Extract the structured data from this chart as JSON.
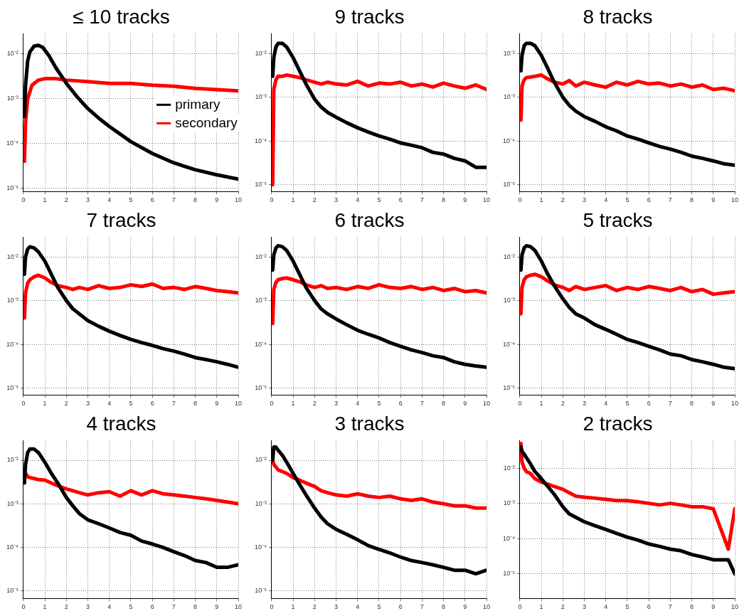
{
  "chart_data": [
    {
      "type": "line",
      "title": "≤ 10 tracks",
      "log": "y",
      "grid": true,
      "marker": "none",
      "line_style": "solid",
      "legend": "center right",
      "xlim": [
        0,
        10
      ],
      "xticks": [
        0,
        1,
        2,
        3,
        4,
        5,
        6,
        7,
        8,
        9,
        10
      ],
      "ylim": [
        8.5e-06,
        0.028
      ],
      "yticks": [
        {
          "value": 1e-05,
          "label": "10⁻⁵"
        },
        {
          "value": 0.0001,
          "label": "10⁻⁴"
        },
        {
          "value": 0.001,
          "label": "10⁻³"
        },
        {
          "value": 0.01,
          "label": "10⁻²"
        }
      ],
      "series": [
        {
          "name": "primary",
          "color": "#000000",
          "x": [
            0.05,
            0.1,
            0.2,
            0.3,
            0.5,
            0.7,
            0.9,
            1.2,
            1.5,
            2,
            2.5,
            3,
            3.5,
            4,
            5,
            6,
            7,
            8,
            9,
            10
          ],
          "values": [
            0.0004,
            0.002,
            0.007,
            0.011,
            0.015,
            0.0155,
            0.014,
            0.009,
            0.005,
            0.0022,
            0.0011,
            0.0006,
            0.00037,
            0.00024,
            0.00011,
            6e-05,
            3.7e-05,
            2.6e-05,
            2e-05,
            1.6e-05
          ]
        },
        {
          "name": "secondary",
          "color": "#ff0000",
          "x": [
            0.05,
            0.1,
            0.2,
            0.4,
            0.7,
            1,
            1.5,
            2,
            3,
            4,
            5,
            6,
            7,
            8,
            9,
            10
          ],
          "values": [
            4e-05,
            0.0003,
            0.001,
            0.002,
            0.0026,
            0.0028,
            0.0028,
            0.0026,
            0.0024,
            0.0022,
            0.0022,
            0.002,
            0.0019,
            0.0017,
            0.0016,
            0.0015
          ]
        }
      ]
    },
    {
      "type": "line",
      "title": "9 tracks",
      "log": "y",
      "grid": true,
      "marker": "none",
      "line_style": "solid",
      "xlim": [
        0,
        10
      ],
      "xticks": [
        0,
        1,
        2,
        3,
        4,
        5,
        6,
        7,
        8,
        9,
        10
      ],
      "ylim": [
        7e-06,
        0.028
      ],
      "yticks": [
        {
          "value": 1e-05,
          "label": "10⁻⁵"
        },
        {
          "value": 0.0001,
          "label": "10⁻⁴"
        },
        {
          "value": 0.001,
          "label": "10⁻³"
        },
        {
          "value": 0.01,
          "label": "10⁻²"
        }
      ],
      "x": [
        0.05,
        0.1,
        0.2,
        0.3,
        0.5,
        0.7,
        1,
        1.3,
        1.6,
        2,
        2.3,
        2.6,
        3,
        3.5,
        4,
        4.5,
        5,
        5.5,
        6,
        6.5,
        7,
        7.5,
        8,
        8.5,
        9,
        9.5,
        10
      ],
      "series": [
        {
          "color": "#000000",
          "values": [
            0.003,
            0.008,
            0.014,
            0.017,
            0.017,
            0.014,
            0.008,
            0.004,
            0.002,
            0.0009,
            0.0006,
            0.00045,
            0.00035,
            0.00026,
            0.0002,
            0.00016,
            0.00013,
            0.00011,
            9e-05,
            8e-05,
            7e-05,
            5.5e-05,
            5e-05,
            4e-05,
            3.5e-05,
            2.5e-05,
            2.5e-05
          ]
        },
        {
          "color": "#ff0000",
          "values": [
            1e-05,
            0.0015,
            0.0025,
            0.003,
            0.003,
            0.0032,
            0.003,
            0.0028,
            0.0025,
            0.0022,
            0.002,
            0.0022,
            0.002,
            0.0019,
            0.0023,
            0.0018,
            0.0021,
            0.002,
            0.0022,
            0.0018,
            0.002,
            0.0017,
            0.0021,
            0.0018,
            0.0016,
            0.0019,
            0.0015
          ]
        }
      ]
    },
    {
      "type": "line",
      "title": "8 tracks",
      "log": "y",
      "grid": true,
      "marker": "none",
      "line_style": "solid",
      "xlim": [
        0,
        10
      ],
      "xticks": [
        0,
        1,
        2,
        3,
        4,
        5,
        6,
        7,
        8,
        9,
        10
      ],
      "ylim": [
        7e-06,
        0.028
      ],
      "yticks": [
        {
          "value": 1e-05,
          "label": "10⁻⁵"
        },
        {
          "value": 0.0001,
          "label": "10⁻⁴"
        },
        {
          "value": 0.001,
          "label": "10⁻³"
        },
        {
          "value": 0.01,
          "label": "10⁻²"
        }
      ],
      "x": [
        0.05,
        0.1,
        0.2,
        0.3,
        0.5,
        0.7,
        1,
        1.3,
        1.6,
        2,
        2.3,
        2.6,
        3,
        3.5,
        4,
        4.5,
        5,
        5.5,
        6,
        6.5,
        7,
        7.5,
        8,
        8.5,
        9,
        9.5,
        10
      ],
      "series": [
        {
          "color": "#000000",
          "values": [
            0.004,
            0.009,
            0.015,
            0.017,
            0.017,
            0.015,
            0.009,
            0.0045,
            0.0022,
            0.001,
            0.00065,
            0.00048,
            0.00036,
            0.00028,
            0.00021,
            0.00017,
            0.00013,
            0.00011,
            9e-05,
            7.5e-05,
            6.5e-05,
            5.5e-05,
            4.5e-05,
            4e-05,
            3.5e-05,
            3e-05,
            2.8e-05
          ]
        },
        {
          "color": "#ff0000",
          "values": [
            0.0003,
            0.0018,
            0.0025,
            0.0028,
            0.0029,
            0.003,
            0.0032,
            0.0026,
            0.0022,
            0.002,
            0.0024,
            0.0018,
            0.0022,
            0.0019,
            0.0017,
            0.0022,
            0.0019,
            0.0023,
            0.002,
            0.0021,
            0.0018,
            0.002,
            0.0017,
            0.0019,
            0.0015,
            0.0016,
            0.0014
          ]
        }
      ]
    },
    {
      "type": "line",
      "title": "7 tracks",
      "log": "y",
      "grid": true,
      "marker": "none",
      "line_style": "solid",
      "xlim": [
        0,
        10
      ],
      "xticks": [
        0,
        1,
        2,
        3,
        4,
        5,
        6,
        7,
        8,
        9,
        10
      ],
      "ylim": [
        7e-06,
        0.028
      ],
      "yticks": [
        {
          "value": 1e-05,
          "label": "10⁻⁵"
        },
        {
          "value": 0.0001,
          "label": "10⁻⁴"
        },
        {
          "value": 0.001,
          "label": "10⁻³"
        },
        {
          "value": 0.01,
          "label": "10⁻²"
        }
      ],
      "x": [
        0.05,
        0.1,
        0.2,
        0.3,
        0.5,
        0.7,
        1,
        1.3,
        1.6,
        2,
        2.3,
        2.6,
        3,
        3.5,
        4,
        4.5,
        5,
        5.5,
        6,
        6.5,
        7,
        7.5,
        8,
        8.5,
        9,
        9.5,
        10
      ],
      "series": [
        {
          "color": "#000000",
          "values": [
            0.004,
            0.01,
            0.015,
            0.017,
            0.016,
            0.013,
            0.008,
            0.004,
            0.002,
            0.001,
            0.00065,
            0.0005,
            0.00035,
            0.00026,
            0.0002,
            0.00016,
            0.00013,
            0.00011,
            9.5e-05,
            8e-05,
            7e-05,
            6e-05,
            5e-05,
            4.5e-05,
            4e-05,
            3.5e-05,
            3e-05
          ]
        },
        {
          "color": "#ff0000",
          "values": [
            0.0004,
            0.0015,
            0.0025,
            0.003,
            0.0035,
            0.0038,
            0.0033,
            0.0026,
            0.0022,
            0.002,
            0.0018,
            0.002,
            0.0018,
            0.0022,
            0.0019,
            0.002,
            0.0023,
            0.0021,
            0.0024,
            0.0019,
            0.002,
            0.0018,
            0.0021,
            0.0019,
            0.0017,
            0.0016,
            0.0015
          ]
        }
      ]
    },
    {
      "type": "line",
      "title": "6 tracks",
      "log": "y",
      "grid": true,
      "marker": "none",
      "line_style": "solid",
      "xlim": [
        0,
        10
      ],
      "xticks": [
        0,
        1,
        2,
        3,
        4,
        5,
        6,
        7,
        8,
        9,
        10
      ],
      "ylim": [
        7e-06,
        0.028
      ],
      "yticks": [
        {
          "value": 1e-05,
          "label": "10⁻⁵"
        },
        {
          "value": 0.0001,
          "label": "10⁻⁴"
        },
        {
          "value": 0.001,
          "label": "10⁻³"
        },
        {
          "value": 0.01,
          "label": "10⁻²"
        }
      ],
      "x": [
        0.05,
        0.1,
        0.2,
        0.3,
        0.5,
        0.7,
        1,
        1.3,
        1.6,
        2,
        2.3,
        2.6,
        3,
        3.5,
        4,
        4.5,
        5,
        5.5,
        6,
        6.5,
        7,
        7.5,
        8,
        8.5,
        9,
        9.5,
        10
      ],
      "series": [
        {
          "color": "#000000",
          "values": [
            0.005,
            0.011,
            0.016,
            0.018,
            0.017,
            0.014,
            0.008,
            0.004,
            0.002,
            0.001,
            0.00065,
            0.0005,
            0.00038,
            0.00028,
            0.00021,
            0.00017,
            0.00014,
            0.00011,
            9e-05,
            7.5e-05,
            6.5e-05,
            5.5e-05,
            5e-05,
            4e-05,
            3.5e-05,
            3.2e-05,
            3e-05
          ]
        },
        {
          "color": "#ff0000",
          "values": [
            0.0003,
            0.0018,
            0.0026,
            0.003,
            0.0032,
            0.0033,
            0.003,
            0.0027,
            0.0023,
            0.002,
            0.0022,
            0.0019,
            0.002,
            0.0018,
            0.0021,
            0.0019,
            0.0023,
            0.002,
            0.0019,
            0.0021,
            0.0018,
            0.002,
            0.0017,
            0.0019,
            0.0016,
            0.0017,
            0.0015
          ]
        }
      ]
    },
    {
      "type": "line",
      "title": "5 tracks",
      "log": "y",
      "grid": true,
      "marker": "none",
      "line_style": "solid",
      "xlim": [
        0,
        10
      ],
      "xticks": [
        0,
        1,
        2,
        3,
        4,
        5,
        6,
        7,
        8,
        9,
        10
      ],
      "ylim": [
        7e-06,
        0.028
      ],
      "yticks": [
        {
          "value": 1e-05,
          "label": "10⁻⁵"
        },
        {
          "value": 0.0001,
          "label": "10⁻⁴"
        },
        {
          "value": 0.001,
          "label": "10⁻³"
        },
        {
          "value": 0.01,
          "label": "10⁻²"
        }
      ],
      "x": [
        0.05,
        0.1,
        0.2,
        0.3,
        0.5,
        0.7,
        1,
        1.3,
        1.6,
        2,
        2.3,
        2.6,
        3,
        3.5,
        4,
        4.5,
        5,
        5.5,
        6,
        6.5,
        7,
        7.5,
        8,
        8.5,
        9,
        9.5,
        10
      ],
      "series": [
        {
          "color": "#000000",
          "values": [
            0.005,
            0.011,
            0.016,
            0.018,
            0.017,
            0.014,
            0.008,
            0.004,
            0.0022,
            0.0011,
            0.0007,
            0.0005,
            0.0004,
            0.00028,
            0.00022,
            0.00017,
            0.00013,
            0.00011,
            9e-05,
            7.5e-05,
            6e-05,
            5.5e-05,
            4.5e-05,
            4e-05,
            3.5e-05,
            3e-05,
            2.8e-05
          ]
        },
        {
          "color": "#ff0000",
          "values": [
            0.0005,
            0.002,
            0.003,
            0.0035,
            0.0038,
            0.004,
            0.0035,
            0.0028,
            0.0023,
            0.002,
            0.0017,
            0.0021,
            0.0018,
            0.002,
            0.0022,
            0.0017,
            0.002,
            0.0018,
            0.0021,
            0.0019,
            0.0017,
            0.002,
            0.0016,
            0.0018,
            0.0014,
            0.0015,
            0.0016
          ]
        }
      ]
    },
    {
      "type": "line",
      "title": "4 tracks",
      "log": "y",
      "grid": true,
      "marker": "none",
      "line_style": "solid",
      "xlim": [
        0,
        10
      ],
      "xticks": [
        0,
        1,
        2,
        3,
        4,
        5,
        6,
        7,
        8,
        9,
        10
      ],
      "ylim": [
        6.8e-06,
        0.028
      ],
      "yticks": [
        {
          "value": 1e-05,
          "label": "10⁻⁵"
        },
        {
          "value": 0.0001,
          "label": "10⁻⁴"
        },
        {
          "value": 0.001,
          "label": "10⁻³"
        },
        {
          "value": 0.01,
          "label": "10⁻²"
        }
      ],
      "x": [
        0.05,
        0.1,
        0.2,
        0.3,
        0.5,
        0.7,
        1,
        1.3,
        1.6,
        2,
        2.3,
        2.6,
        3,
        3.5,
        4,
        4.5,
        5,
        5.5,
        6,
        6.5,
        7,
        7.5,
        8,
        8.5,
        9,
        9.5,
        10
      ],
      "series": [
        {
          "color": "#000000",
          "values": [
            0.003,
            0.008,
            0.015,
            0.018,
            0.018,
            0.015,
            0.009,
            0.005,
            0.003,
            0.0014,
            0.0009,
            0.0006,
            0.00043,
            0.00035,
            0.00028,
            0.00022,
            0.00019,
            0.00014,
            0.00012,
            0.0001,
            8e-05,
            6.5e-05,
            5e-05,
            4.5e-05,
            3.5e-05,
            3.5e-05,
            4e-05
          ]
        },
        {
          "color": "#ff0000",
          "values": [
            0.004,
            0.005,
            0.0042,
            0.004,
            0.0038,
            0.0036,
            0.0035,
            0.003,
            0.0026,
            0.0022,
            0.002,
            0.0018,
            0.0016,
            0.0018,
            0.0019,
            0.0015,
            0.002,
            0.0016,
            0.002,
            0.0017,
            0.0016,
            0.0015,
            0.0014,
            0.0013,
            0.0012,
            0.0011,
            0.001
          ]
        }
      ]
    },
    {
      "type": "line",
      "title": "3 tracks",
      "log": "y",
      "grid": true,
      "marker": "none",
      "line_style": "solid",
      "xlim": [
        0,
        10
      ],
      "xticks": [
        0,
        1,
        2,
        3,
        4,
        5,
        6,
        7,
        8,
        9,
        10
      ],
      "ylim": [
        6.8e-06,
        0.028
      ],
      "yticks": [
        {
          "value": 1e-05,
          "label": "10⁻⁵"
        },
        {
          "value": 0.0001,
          "label": "10⁻⁴"
        },
        {
          "value": 0.001,
          "label": "10⁻³"
        },
        {
          "value": 0.01,
          "label": "10⁻²"
        }
      ],
      "x": [
        0.05,
        0.1,
        0.2,
        0.3,
        0.5,
        0.7,
        1,
        1.3,
        1.6,
        2,
        2.3,
        2.6,
        3,
        3.5,
        4,
        4.5,
        5,
        5.5,
        6,
        6.5,
        7,
        7.5,
        8,
        8.5,
        9,
        9.5,
        10
      ],
      "series": [
        {
          "color": "#000000",
          "values": [
            0.01,
            0.02,
            0.02,
            0.017,
            0.013,
            0.009,
            0.005,
            0.0028,
            0.0016,
            0.0008,
            0.0005,
            0.00035,
            0.00026,
            0.0002,
            0.00015,
            0.00011,
            9e-05,
            7.5e-05,
            6e-05,
            5e-05,
            4.5e-05,
            4e-05,
            3.5e-05,
            3e-05,
            3e-05,
            2.5e-05,
            3e-05
          ]
        },
        {
          "color": "#ff0000",
          "values": [
            0.01,
            0.008,
            0.007,
            0.006,
            0.0055,
            0.005,
            0.004,
            0.0035,
            0.003,
            0.0025,
            0.002,
            0.0018,
            0.0016,
            0.0015,
            0.0017,
            0.0015,
            0.0014,
            0.0015,
            0.0013,
            0.0012,
            0.0013,
            0.0011,
            0.001,
            0.0009,
            0.0009,
            0.0008,
            0.0008
          ]
        }
      ]
    },
    {
      "type": "line",
      "title": "2 tracks",
      "log": "y",
      "grid": true,
      "marker": "none",
      "line_style": "solid",
      "xlim": [
        0,
        10
      ],
      "xticks": [
        0,
        1,
        2,
        3,
        4,
        5,
        6,
        7,
        8,
        9,
        10
      ],
      "ylim": [
        2e-06,
        0.06
      ],
      "yticks": [
        {
          "value": 1e-05,
          "label": "10⁻⁵"
        },
        {
          "value": 0.0001,
          "label": "10⁻⁴"
        },
        {
          "value": 0.001,
          "label": "10⁻³"
        },
        {
          "value": 0.01,
          "label": "10⁻²"
        }
      ],
      "x": [
        0.05,
        0.1,
        0.2,
        0.3,
        0.5,
        0.7,
        1,
        1.3,
        1.6,
        2,
        2.3,
        2.6,
        3,
        3.5,
        4,
        4.5,
        5,
        5.5,
        6,
        6.5,
        7,
        7.5,
        8,
        8.5,
        9,
        9.7,
        10
      ],
      "series": [
        {
          "color": "#000000",
          "values": [
            0.04,
            0.03,
            0.025,
            0.02,
            0.013,
            0.008,
            0.005,
            0.003,
            0.0018,
            0.0008,
            0.0005,
            0.0004,
            0.0003,
            0.00023,
            0.00018,
            0.00014,
            0.00011,
            9e-05,
            7e-05,
            6e-05,
            5e-05,
            4.5e-05,
            3.5e-05,
            3e-05,
            2.5e-05,
            2.5e-05,
            1e-05
          ]
        },
        {
          "color": "#ff0000",
          "values": [
            0.05,
            0.015,
            0.01,
            0.008,
            0.007,
            0.005,
            0.004,
            0.0035,
            0.003,
            0.0025,
            0.002,
            0.0016,
            0.0015,
            0.0014,
            0.0013,
            0.0012,
            0.0012,
            0.0011,
            0.001,
            0.0009,
            0.001,
            0.0009,
            0.0008,
            0.0008,
            0.0007,
            5e-05,
            0.0007
          ]
        }
      ]
    }
  ]
}
